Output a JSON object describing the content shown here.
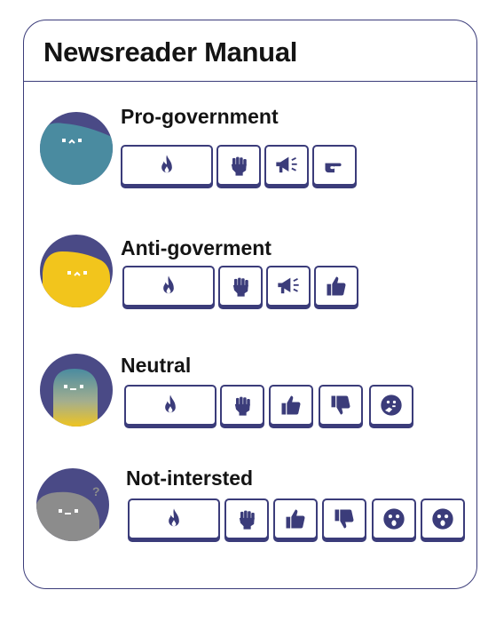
{
  "manual": {
    "title": "Newsreader Manual",
    "personas": [
      {
        "name": "Pro-government",
        "avatar": "blue-blob-avatar",
        "actions": [
          "fire-icon",
          "raised-fist-icon",
          "megaphone-icon",
          "pointing-hand-icon"
        ]
      },
      {
        "name": "Anti-goverment",
        "avatar": "yellow-blob-avatar",
        "actions": [
          "fire-icon",
          "raised-fist-icon",
          "megaphone-icon",
          "thumbs-up-icon"
        ]
      },
      {
        "name": "Neutral",
        "avatar": "gradient-blob-avatar",
        "actions": [
          "fire-icon",
          "raised-fist-icon",
          "thumbs-up-icon",
          "thumbs-down-icon",
          "thinking-face-icon"
        ]
      },
      {
        "name": "Not-intersted",
        "avatar": "grey-blob-question-avatar",
        "actions": [
          "fire-icon",
          "raised-fist-icon",
          "thumbs-up-icon",
          "thumbs-down-icon",
          "surprised-face-icon",
          "surprised-face-icon"
        ]
      }
    ]
  },
  "colors": {
    "ink": "#3b3c7a",
    "avatar_bg": "#4a4a86",
    "blue_blob": "#4a8ba0",
    "yellow_blob": "#f2c51c",
    "grey_blob": "#8c8c8c"
  }
}
